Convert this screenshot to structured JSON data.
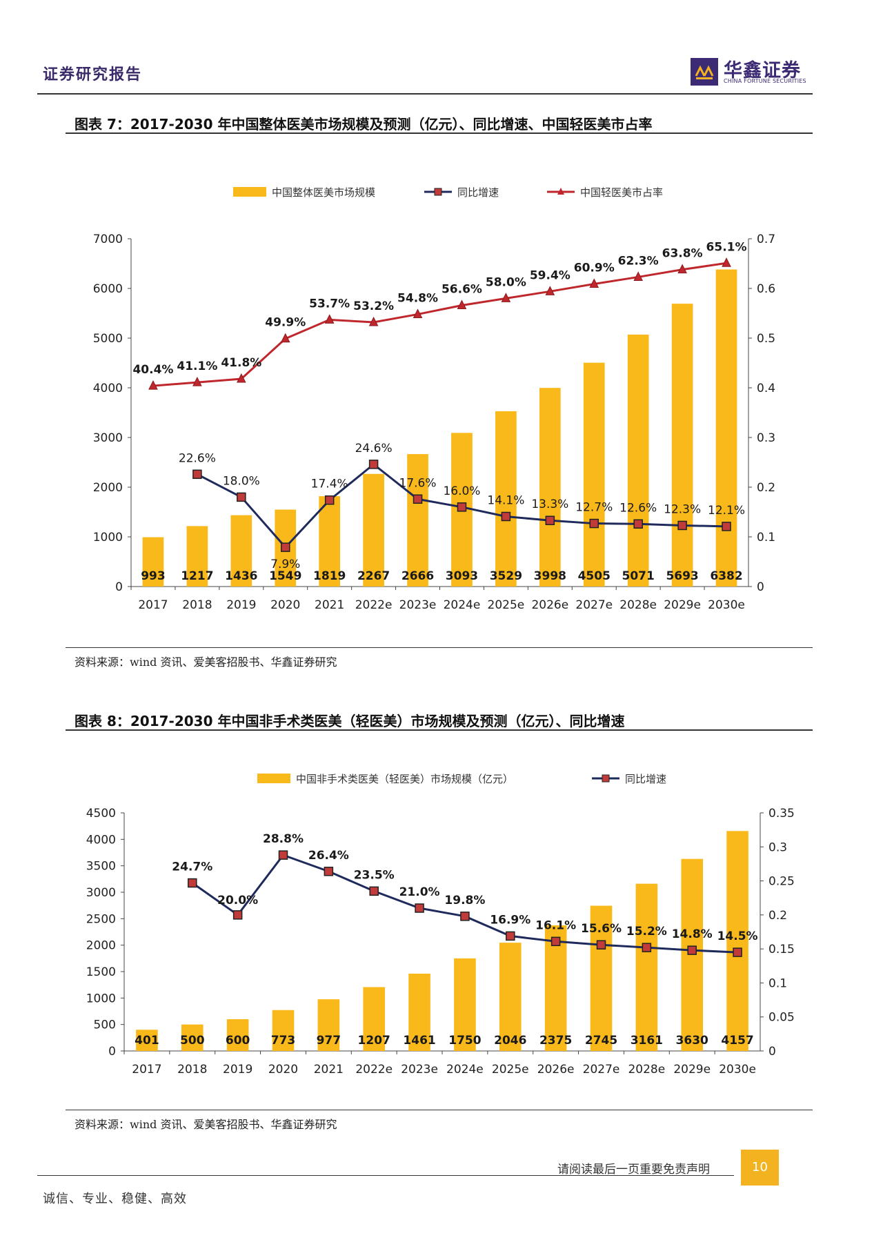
{
  "header": {
    "title": "证券研究报告",
    "logo_cn": "华鑫证券",
    "logo_en": "CHINA FORTUNE SECURITIES"
  },
  "figure7": {
    "title": "图表 7：2017-2030 年中国整体医美市场规模及预测（亿元）、同比增速、中国轻医美市占率",
    "source": "资料来源：wind 资讯、爱美客招股书、华鑫证券研究"
  },
  "figure8": {
    "title": "图表 8：2017-2030 年中国非手术类医美（轻医美）市场规模及预测（亿元）、同比增速",
    "source": "资料来源：wind 资讯、爱美客招股书、华鑫证券研究"
  },
  "footer": {
    "note": "请阅读最后一页重要免责声明",
    "page": "10",
    "slogan": "诚信、专业、稳健、高效"
  },
  "colors": {
    "bar": "#f9b91a",
    "growth_line": "#1f2a5c",
    "growth_marker": "#c23b3b",
    "share_line": "#c0272d"
  },
  "chart_data": [
    {
      "type": "bar",
      "categories": [
        "2017",
        "2018",
        "2019",
        "2020",
        "2021",
        "2022e",
        "2023e",
        "2024e",
        "2025e",
        "2026e",
        "2027e",
        "2028e",
        "2029e",
        "2030e"
      ],
      "series": [
        {
          "name": "中国整体医美市场规模",
          "type": "bar",
          "axis": "left",
          "values": [
            993,
            1217,
            1436,
            1549,
            1819,
            2267,
            2666,
            3093,
            3529,
            3998,
            4505,
            5071,
            5693,
            6382
          ],
          "labels": [
            "993",
            "1217",
            "1436",
            "1549",
            "1819",
            "2267",
            "2666",
            "3093",
            "3529",
            "3998",
            "4505",
            "5071",
            "5693",
            "6382"
          ]
        },
        {
          "name": "同比增速",
          "type": "line",
          "axis": "right",
          "values": [
            null,
            0.226,
            0.18,
            0.079,
            0.174,
            0.246,
            0.176,
            0.16,
            0.141,
            0.133,
            0.127,
            0.126,
            0.123,
            0.121
          ],
          "labels": [
            "",
            "22.6%",
            "18.0%",
            "7.9%",
            "17.4%",
            "24.6%",
            "17.6%",
            "16.0%",
            "14.1%",
            "13.3%",
            "12.7%",
            "12.6%",
            "12.3%",
            "12.1%"
          ]
        },
        {
          "name": "中国轻医美市占率",
          "type": "line",
          "axis": "right",
          "values": [
            0.404,
            0.411,
            0.418,
            0.499,
            0.537,
            0.532,
            0.548,
            0.566,
            0.58,
            0.594,
            0.609,
            0.623,
            0.638,
            0.651
          ],
          "labels": [
            "40.4%",
            "41.1%",
            "41.8%",
            "49.9%",
            "53.7%",
            "53.2%",
            "54.8%",
            "56.6%",
            "58.0%",
            "59.4%",
            "60.9%",
            "62.3%",
            "63.8%",
            "65.1%"
          ]
        }
      ],
      "left_axis": {
        "ylim": [
          0,
          7000
        ],
        "ticks": [
          "0",
          "1000",
          "2000",
          "3000",
          "4000",
          "5000",
          "6000",
          "7000"
        ]
      },
      "right_axis": {
        "ylim": [
          0,
          0.7
        ],
        "ticks": [
          "0",
          "0.1",
          "0.2",
          "0.3",
          "0.4",
          "0.5",
          "0.6",
          "0.7"
        ]
      },
      "legend_position": "top"
    },
    {
      "type": "bar",
      "categories": [
        "2017",
        "2018",
        "2019",
        "2020",
        "2021",
        "2022e",
        "2023e",
        "2024e",
        "2025e",
        "2026e",
        "2027e",
        "2028e",
        "2029e",
        "2030e"
      ],
      "series": [
        {
          "name": "中国非手术类医美（轻医美）市场规模（亿元）",
          "type": "bar",
          "axis": "left",
          "values": [
            401,
            500,
            600,
            773,
            977,
            1207,
            1461,
            1750,
            2046,
            2375,
            2745,
            3161,
            3630,
            4157
          ],
          "labels": [
            "401",
            "500",
            "600",
            "773",
            "977",
            "1207",
            "1461",
            "1750",
            "2046",
            "2375",
            "2745",
            "3161",
            "3630",
            "4157"
          ]
        },
        {
          "name": "同比增速",
          "type": "line",
          "axis": "right",
          "values": [
            null,
            0.247,
            0.2,
            0.288,
            0.264,
            0.235,
            0.21,
            0.198,
            0.169,
            0.161,
            0.156,
            0.152,
            0.148,
            0.145
          ],
          "labels": [
            "",
            "24.7%",
            "20.0%",
            "28.8%",
            "26.4%",
            "23.5%",
            "21.0%",
            "19.8%",
            "16.9%",
            "16.1%",
            "15.6%",
            "15.2%",
            "14.8%",
            "14.5%"
          ]
        }
      ],
      "left_axis": {
        "ylim": [
          0,
          4500
        ],
        "ticks": [
          "0",
          "500",
          "1000",
          "1500",
          "2000",
          "2500",
          "3000",
          "3500",
          "4000",
          "4500"
        ]
      },
      "right_axis": {
        "ylim": [
          0,
          0.35
        ],
        "ticks": [
          "0",
          "0.05",
          "0.1",
          "0.15",
          "0.2",
          "0.25",
          "0.3",
          "0.35"
        ]
      },
      "legend_position": "top"
    }
  ]
}
